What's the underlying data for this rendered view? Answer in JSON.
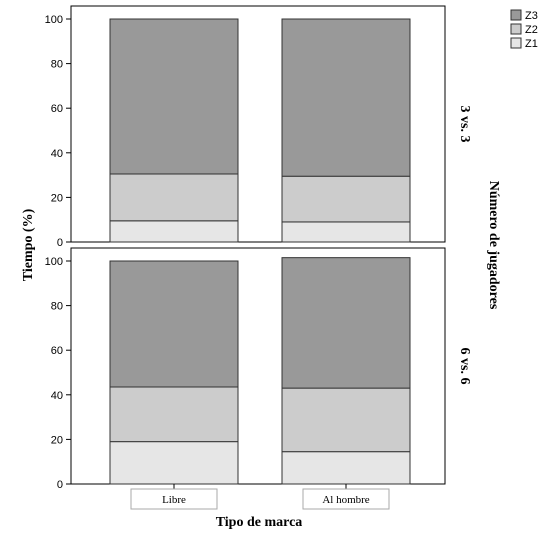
{
  "chart_data": {
    "type": "bar",
    "stacked": true,
    "xlabel": "Tipo de marca",
    "ylabel": "Tiempo (%)",
    "facet_title": "Número de jugadores",
    "categories": [
      "Libre",
      "Al hombre"
    ],
    "yticks": [
      0,
      20,
      40,
      60,
      80,
      100
    ],
    "ylim": [
      0,
      100
    ],
    "legend": {
      "placement": "top-right",
      "entries": [
        "Z3",
        "Z2",
        "Z1"
      ]
    },
    "colors": {
      "Z1": "#e6e6e6",
      "Z2": "#cccccc",
      "Z3": "#999999"
    },
    "panels": [
      {
        "label": "3 vs. 3",
        "series": [
          {
            "name": "Z1",
            "values": [
              9.5,
              9
            ]
          },
          {
            "name": "Z2",
            "values": [
              21,
              20.5
            ]
          },
          {
            "name": "Z3",
            "values": [
              69.5,
              70.5
            ]
          }
        ]
      },
      {
        "label": "6 vs. 6",
        "series": [
          {
            "name": "Z1",
            "values": [
              19,
              14.5
            ]
          },
          {
            "name": "Z2",
            "values": [
              24.5,
              28.5
            ]
          },
          {
            "name": "Z3",
            "values": [
              56.5,
              58.5
            ]
          }
        ]
      }
    ]
  }
}
